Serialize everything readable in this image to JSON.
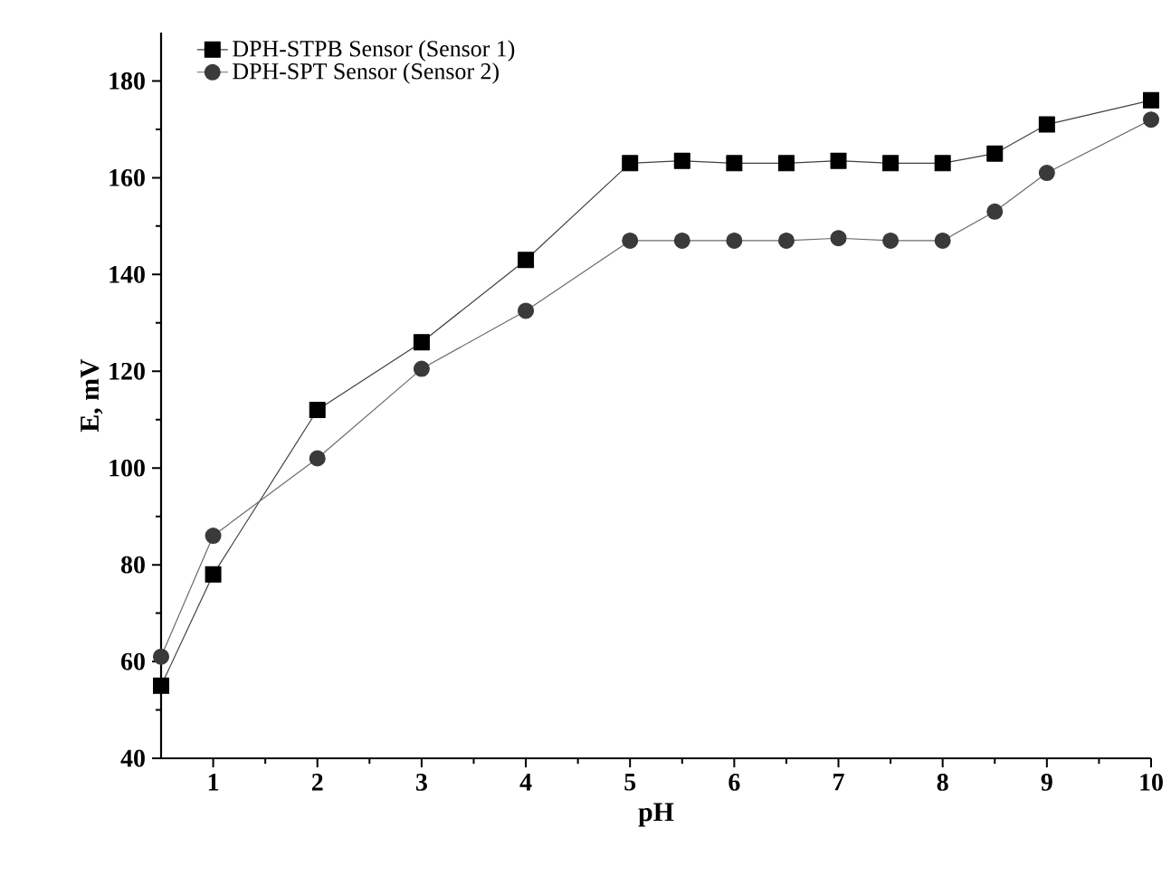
{
  "chart_data": {
    "type": "line",
    "xlabel": "pH",
    "ylabel": "E, mV",
    "x": [
      0.5,
      1,
      2,
      3,
      4,
      5,
      5.5,
      6,
      6.5,
      7,
      7.5,
      8,
      8.5,
      9,
      10
    ],
    "series": [
      {
        "name": "DPH-STPB Sensor (Sensor 1)",
        "color": "#000000",
        "marker": "square",
        "values": [
          55,
          78,
          112,
          126,
          143,
          163,
          163.5,
          163,
          163,
          163.5,
          163,
          163,
          165,
          171,
          176
        ]
      },
      {
        "name": "DPH-SPT Sensor (Sensor 2)",
        "color": "#3a3a3a",
        "marker": "circle",
        "values": [
          61,
          86,
          102,
          120.5,
          132.5,
          147,
          147,
          147,
          147,
          147.5,
          147,
          147,
          153,
          161,
          172
        ]
      }
    ],
    "xlim": [
      0.5,
      10
    ],
    "ylim": [
      40,
      190
    ],
    "xticks": [
      1,
      2,
      3,
      4,
      5,
      6,
      7,
      8,
      9,
      10
    ],
    "yticks": [
      40,
      60,
      80,
      100,
      120,
      140,
      160,
      180
    ],
    "grid": false,
    "legend": "top left",
    "line_style": "solid"
  }
}
